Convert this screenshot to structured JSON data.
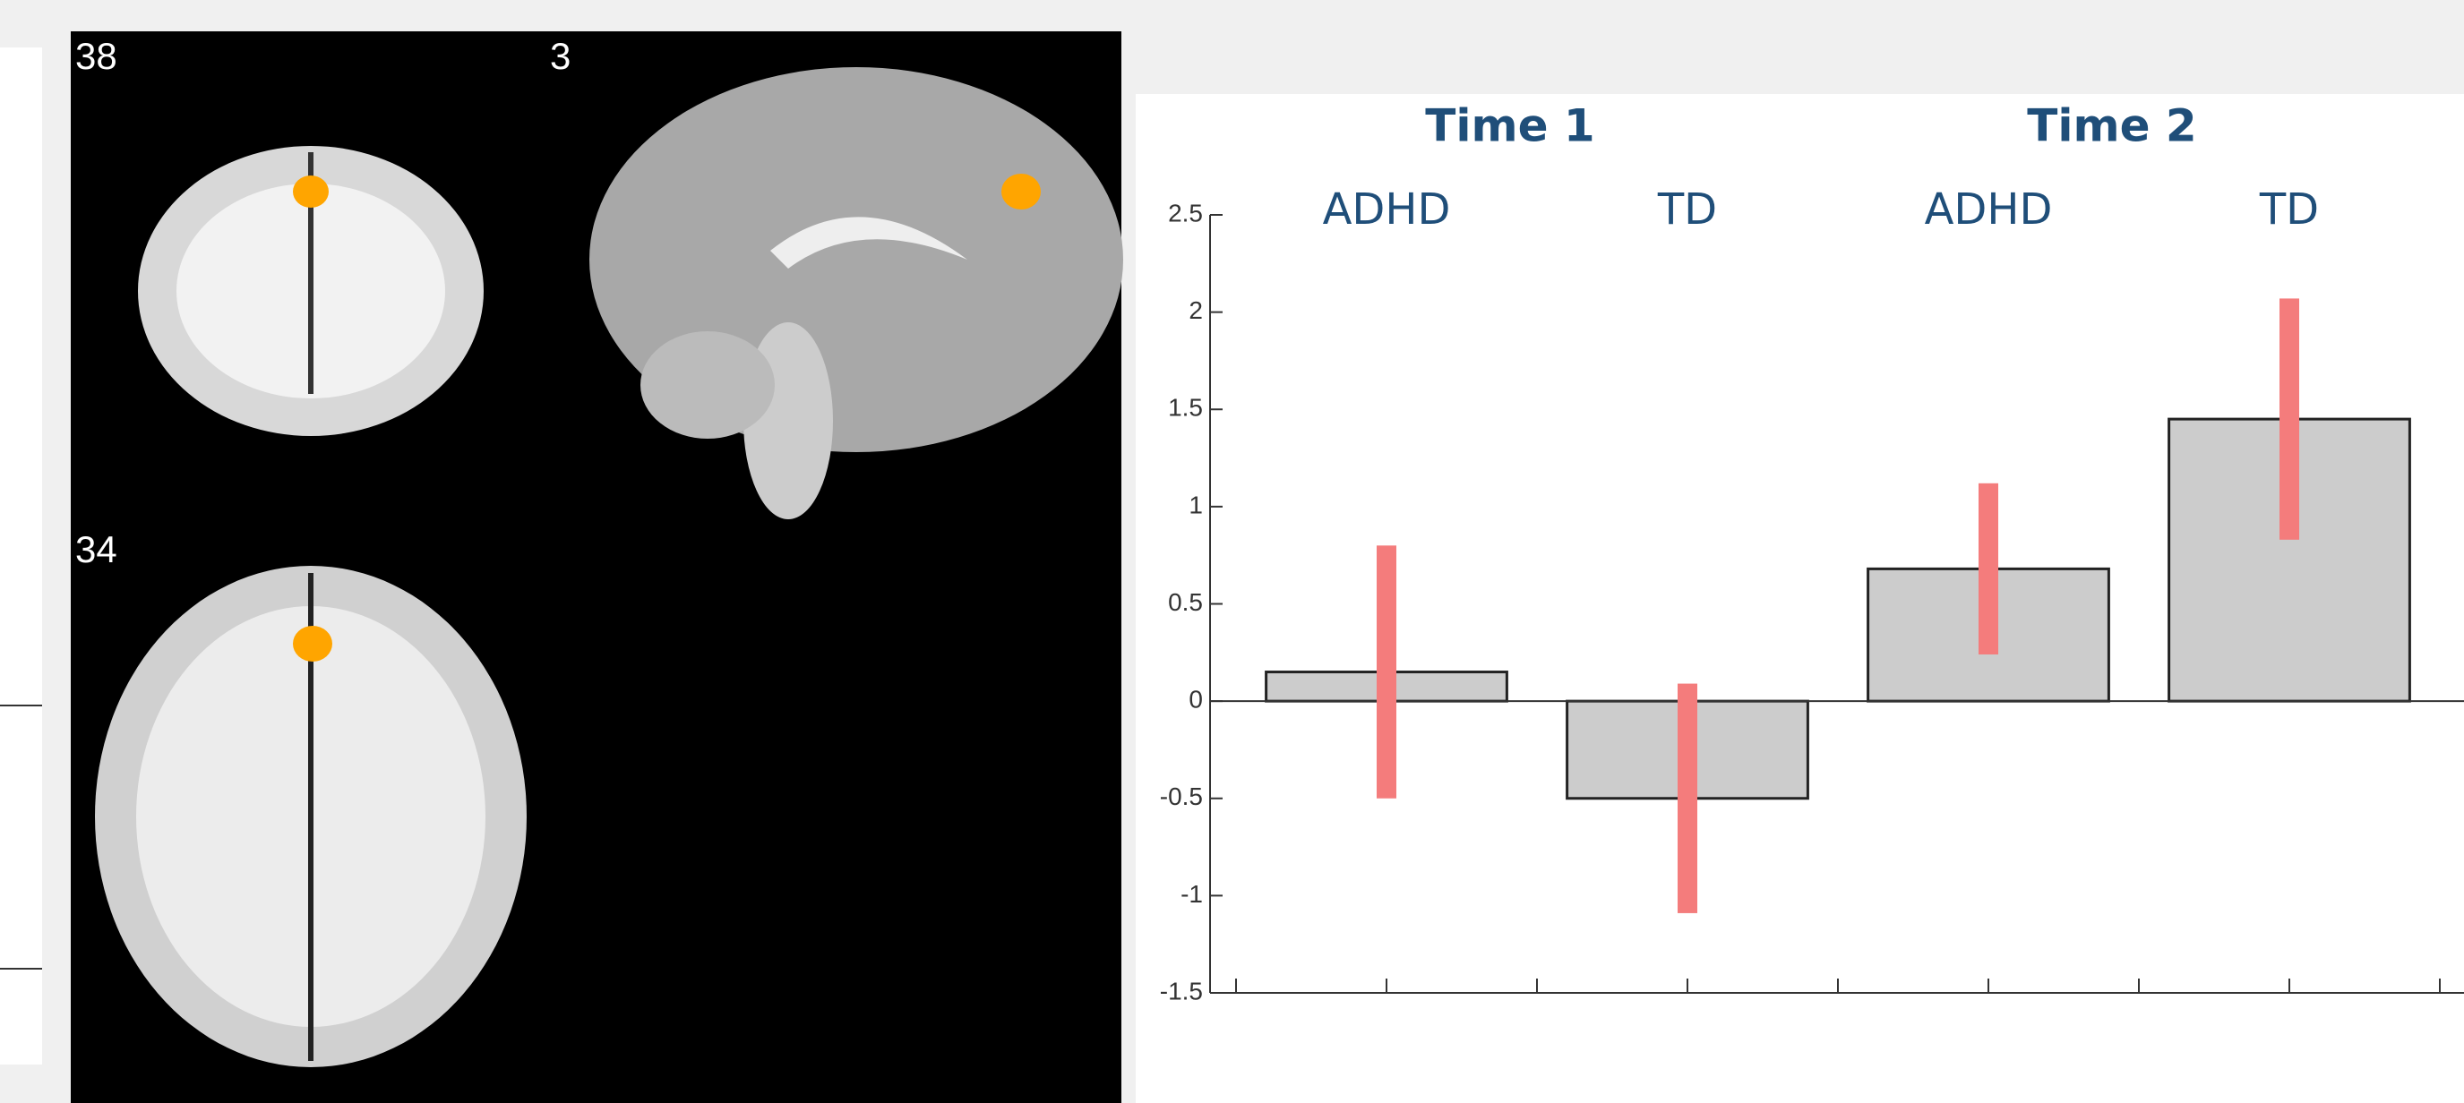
{
  "slice_labels": [
    "38",
    "3",
    "34"
  ],
  "chart_data": {
    "type": "bar",
    "groups": [
      "Time 1",
      "Time 2"
    ],
    "categories": [
      "ADHD",
      "TD",
      "ADHD",
      "TD"
    ],
    "values": [
      0.15,
      -0.5,
      0.68,
      1.45
    ],
    "errors": [
      0.65,
      0.59,
      0.44,
      0.62
    ],
    "color": "#cccccc",
    "error_color": "#f47c7c",
    "ylim": [
      -1.5,
      2.5
    ],
    "yticks": [
      2.5,
      2,
      1.5,
      1,
      0.5,
      0,
      -0.5,
      -1,
      -1.5
    ]
  }
}
